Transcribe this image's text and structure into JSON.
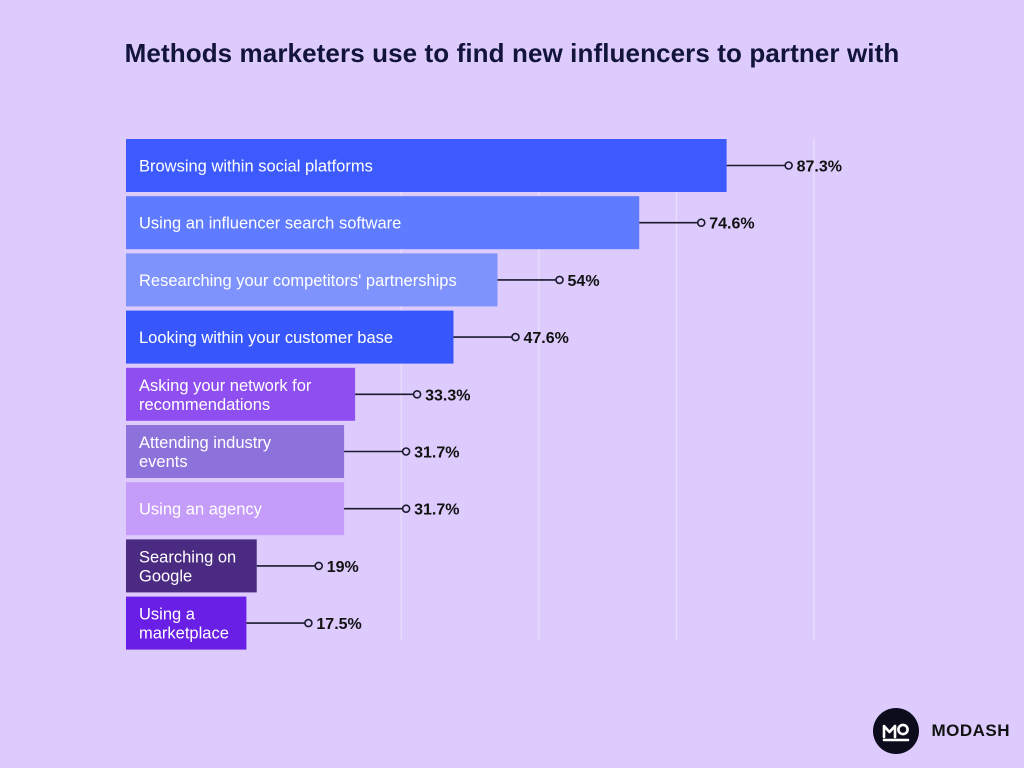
{
  "title": "Methods marketers use to find new influencers to partner with",
  "brand": {
    "name": "MODASH",
    "logo_icon": "modash-logo-icon"
  },
  "colors": {
    "background": "#dccbfc",
    "title": "#12143a",
    "gridline": "#ecdffe",
    "leader": "#1a1a2e"
  },
  "chart_data": {
    "type": "bar",
    "orientation": "horizontal",
    "title": "Methods marketers use to find new influencers to partner with",
    "xlabel": "",
    "ylabel": "",
    "xlim": [
      0,
      100
    ],
    "grid": true,
    "legend": "none",
    "categories": [
      "Browsing within social platforms",
      "Using an influencer search software",
      "Researching your competitors' partnerships",
      "Looking within your customer base",
      "Asking your network for recommendations",
      "Attending industry events",
      "Using an agency",
      "Searching on Google",
      "Using a marketplace"
    ],
    "values": [
      87.3,
      74.6,
      54,
      47.6,
      33.3,
      31.7,
      31.7,
      19,
      17.5
    ],
    "value_labels": [
      "87.3%",
      "74.6%",
      "54%",
      "47.6%",
      "33.3%",
      "31.7%",
      "31.7%",
      "19%",
      "17.5%"
    ],
    "bar_label_lines": [
      [
        "Browsing within social platforms"
      ],
      [
        "Using an influencer search software"
      ],
      [
        "Researching your competitors' partnerships"
      ],
      [
        "Looking within your customer base"
      ],
      [
        "Asking your network for",
        "recommendations"
      ],
      [
        "Attending industry",
        "events"
      ],
      [
        "Using an agency"
      ],
      [
        "Searching on",
        "Google"
      ],
      [
        "Using a",
        "marketplace"
      ]
    ],
    "bar_colors": [
      "#3d5afe",
      "#5f7bff",
      "#7f93ff",
      "#3757fd",
      "#8f4ff0",
      "#8e72dc",
      "#c59cf9",
      "#4b2a82",
      "#6a1fe6"
    ]
  }
}
